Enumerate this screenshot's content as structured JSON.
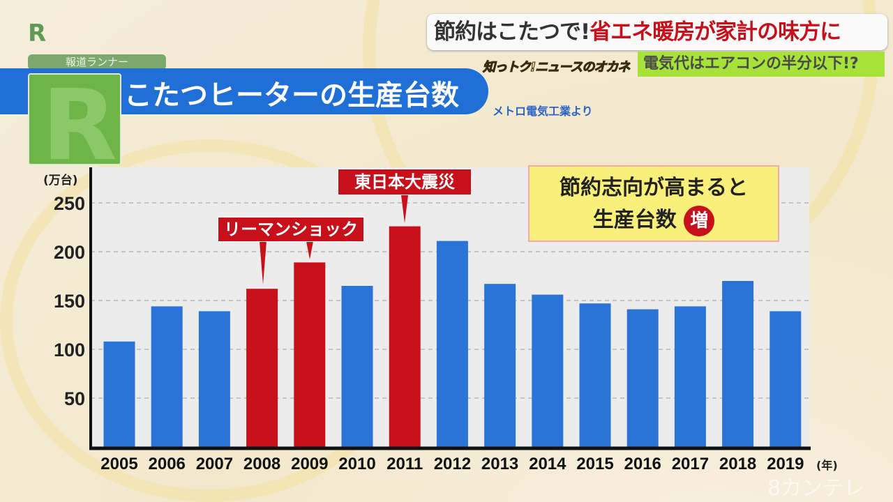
{
  "header": {
    "headline_black": "節約はこたつで!",
    "headline_red": "省エネ暖房が家計の味方に",
    "show_logo": "知っトク!ニュースのオカネ",
    "subheadline": "電気代はエアコンの半分以下!?"
  },
  "branding": {
    "logo": "R",
    "program": "報道ランナー",
    "watermark": "8カンテレ"
  },
  "title": "こたつヒーターの生産台数",
  "source": "メトロ電気工業より",
  "note": {
    "line1": "節約志向が高まると",
    "line2": "生産台数",
    "badge": "増"
  },
  "colors": {
    "normal": "#2a74d8",
    "highlight": "#c8101a"
  },
  "chart_data": {
    "type": "bar",
    "title": "こたつヒーターの生産台数",
    "ylabel": "(万台)",
    "xlabel": "(年)",
    "ylim": [
      0,
      260
    ],
    "yticks": [
      50,
      100,
      150,
      200,
      250
    ],
    "grid": true,
    "categories": [
      "2005",
      "2006",
      "2007",
      "2008",
      "2009",
      "2010",
      "2011",
      "2012",
      "2013",
      "2014",
      "2015",
      "2016",
      "2017",
      "2018",
      "2019"
    ],
    "values": [
      108,
      144,
      139,
      162,
      189,
      165,
      226,
      211,
      167,
      156,
      147,
      141,
      144,
      170,
      139
    ],
    "highlighted": [
      "2008",
      "2009",
      "2011"
    ],
    "annotations": [
      {
        "text": "リーマンショック",
        "targets": [
          "2008",
          "2009"
        ]
      },
      {
        "text": "東日本大震災",
        "targets": [
          "2011"
        ]
      }
    ]
  }
}
